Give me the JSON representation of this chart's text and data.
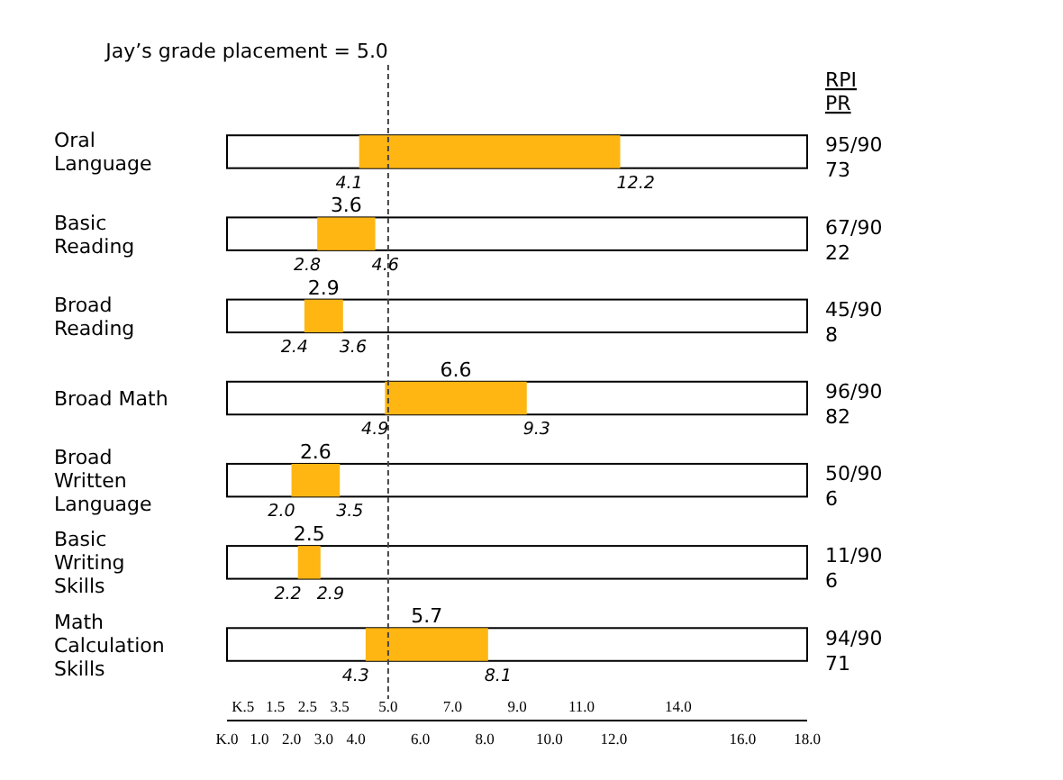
{
  "chart_data": {
    "type": "bar",
    "orientation": "horizontal",
    "categories": [
      "Oral Language",
      "Basic Reading",
      "Broad Reading",
      "Broad Math",
      "Broad Written Language",
      "Basic Writing Skills",
      "Math Calculation Skills"
    ],
    "base": [
      4.1,
      2.8,
      2.4,
      4.9,
      2.0,
      2.2,
      4.3
    ],
    "values": [
      8.1,
      1.8,
      1.2,
      4.4,
      1.5,
      0.7,
      3.8
    ],
    "color": "#ffb612",
    "xlim": [
      0,
      18
    ],
    "xticks": [
      {
        "value": 0,
        "label": "K.0"
      },
      {
        "value": 1,
        "label": "1.0"
      },
      {
        "value": 2,
        "label": "2.0"
      },
      {
        "value": 3,
        "label": "3.0"
      },
      {
        "value": 4,
        "label": "4.0"
      },
      {
        "value": 6,
        "label": "6.0"
      },
      {
        "value": 8,
        "label": "8.0"
      },
      {
        "value": 10,
        "label": "10.0"
      },
      {
        "value": 12,
        "label": "12.0"
      },
      {
        "value": 16,
        "label": "16.0"
      },
      {
        "value": 18,
        "label": "18.0"
      }
    ],
    "x2lim": [
      0,
      18
    ],
    "x2ticks": [
      {
        "value": 0.5,
        "label": "K.5"
      },
      {
        "value": 1.5,
        "label": "1.5"
      },
      {
        "value": 2.5,
        "label": "2.5"
      },
      {
        "value": 3.5,
        "label": "3.5"
      },
      {
        "value": 5,
        "label": "5.0"
      },
      {
        "value": 7,
        "label": "7.0"
      },
      {
        "value": 9,
        "label": "9.0"
      },
      {
        "value": 11,
        "label": "11.0"
      },
      {
        "value": 14,
        "label": "14.0"
      }
    ],
    "ref_lines": [
      {
        "axis": "x",
        "value": 5.0,
        "label": "Jay’s grade placement = 5.0",
        "line_style": "dashed"
      }
    ],
    "annotations": [
      "95/90",
      "73",
      "67/90",
      "22",
      "45/90",
      "8",
      "96/90",
      "82",
      "50/90",
      "6",
      "11/90",
      "6",
      "94/90",
      "71",
      "3.6",
      "2.9",
      "6.6",
      "2.6",
      "2.5",
      "5.7",
      "RPI",
      "PR",
      {
        "text": "4.1",
        "x": 4.1,
        "y": "Oral Language"
      },
      {
        "text": "12.2",
        "x": 12.2,
        "y": "Oral Language"
      },
      {
        "text": "2.8",
        "x": 2.8,
        "y": "Basic Reading"
      },
      {
        "text": "4.6",
        "x": 4.6,
        "y": "Basic Reading"
      },
      {
        "text": "2.4",
        "x": 2.4,
        "y": "Broad Reading"
      },
      {
        "text": "3.6",
        "x": 3.6,
        "y": "Broad Reading"
      },
      {
        "text": "4.9",
        "x": 4.9,
        "y": "Broad Math"
      },
      {
        "text": "9.3",
        "x": 9.3,
        "y": "Broad Math"
      },
      {
        "text": "2.0",
        "x": 2.0,
        "y": "Broad Written Language"
      },
      {
        "text": "3.5",
        "x": 3.5,
        "y": "Broad Written Language"
      },
      {
        "text": "2.2",
        "x": 2.2,
        "y": "Basic Writing Skills"
      },
      {
        "text": "2.9",
        "x": 2.9,
        "y": "Basic Writing Skills"
      },
      {
        "text": "4.3",
        "x": 4.3,
        "y": "Math Calculation Skills"
      },
      {
        "text": "8.1",
        "x": 8.1,
        "y": "Math Calculation Skills"
      }
    ]
  }
}
